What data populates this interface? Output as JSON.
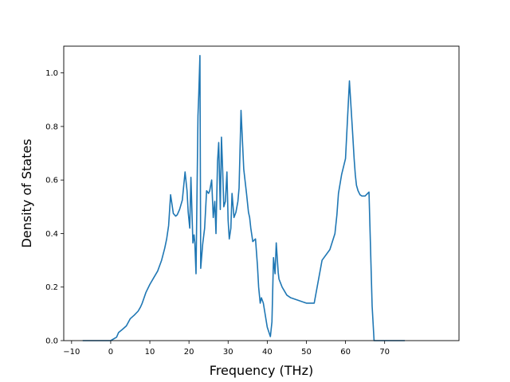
{
  "chart_data": {
    "type": "line",
    "title": "",
    "xlabel": "Frequency (THz)",
    "ylabel": "Density of States",
    "xlim": [
      -12,
      89
    ],
    "ylim": [
      0.0,
      1.1
    ],
    "xticks": [
      -10,
      0,
      10,
      20,
      30,
      40,
      50,
      60,
      70
    ],
    "yticks": [
      0.0,
      0.2,
      0.4,
      0.6,
      0.8,
      1.0
    ],
    "xtick_labels": [
      "−10",
      "0",
      "10",
      "20",
      "30",
      "40",
      "50",
      "60",
      "70"
    ],
    "ytick_labels": [
      "0.0",
      "0.2",
      "0.4",
      "0.6",
      "0.8",
      "1.0"
    ],
    "grid": false,
    "series": [
      {
        "name": "",
        "color": "#1f77b4",
        "x": [
          -7,
          -2,
          0,
          1.5,
          2,
          3,
          4,
          5,
          6,
          7,
          7.6,
          8,
          9,
          10,
          11,
          12,
          13,
          13.8,
          14.3,
          14.8,
          15.3,
          16,
          16.6,
          17,
          17.6,
          18.3,
          19,
          19.5,
          19.8,
          20.2,
          20.5,
          21,
          21.3,
          21.5,
          21.8,
          22.3,
          22.5,
          22.8,
          23,
          23.5,
          24,
          24.5,
          25,
          25.3,
          25.8,
          26.2,
          26.6,
          26.9,
          27.3,
          27.6,
          28,
          28.3,
          28.6,
          28.9,
          29.3,
          29.7,
          30,
          30.3,
          30.7,
          31,
          31.5,
          32,
          32.5,
          32.8,
          33.3,
          34,
          34.7,
          35.2,
          35.5,
          35.8,
          36.3,
          37,
          37.5,
          37.8,
          38.2,
          38.5,
          39,
          40,
          40.8,
          41.2,
          41.6,
          42,
          42.3,
          42.8,
          43,
          43.4,
          43.8,
          44.2,
          44.6,
          45,
          46,
          48,
          50,
          52,
          54,
          56,
          57.3,
          57.8,
          58.2,
          59,
          60,
          61,
          61.8,
          62.2,
          62.5,
          62.8,
          63.2,
          63.7,
          64.2,
          65,
          66,
          66.8,
          67.3,
          67.5,
          67.8,
          68,
          68.3,
          70,
          75
        ],
        "y": [
          0.0,
          0.0,
          0.0,
          0.013,
          0.03,
          0.042,
          0.055,
          0.082,
          0.095,
          0.11,
          0.125,
          0.138,
          0.18,
          0.21,
          0.235,
          0.26,
          0.3,
          0.345,
          0.38,
          0.43,
          0.545,
          0.475,
          0.465,
          0.47,
          0.49,
          0.525,
          0.63,
          0.56,
          0.48,
          0.42,
          0.61,
          0.365,
          0.395,
          0.365,
          0.25,
          0.84,
          0.92,
          1.065,
          0.27,
          0.36,
          0.42,
          0.56,
          0.55,
          0.56,
          0.6,
          0.46,
          0.52,
          0.4,
          0.67,
          0.74,
          0.49,
          0.76,
          0.64,
          0.5,
          0.52,
          0.63,
          0.45,
          0.38,
          0.42,
          0.55,
          0.46,
          0.48,
          0.52,
          0.57,
          0.86,
          0.64,
          0.55,
          0.48,
          0.46,
          0.42,
          0.37,
          0.38,
          0.28,
          0.2,
          0.14,
          0.16,
          0.14,
          0.05,
          0.015,
          0.07,
          0.31,
          0.25,
          0.365,
          0.255,
          0.23,
          0.215,
          0.2,
          0.19,
          0.18,
          0.17,
          0.16,
          0.15,
          0.14,
          0.14,
          0.3,
          0.34,
          0.4,
          0.47,
          0.55,
          0.62,
          0.68,
          0.97,
          0.78,
          0.68,
          0.62,
          0.58,
          0.56,
          0.545,
          0.54,
          0.54,
          0.555,
          0.13,
          0.0,
          0.0,
          0.0,
          0.0,
          0.0,
          0.0,
          0.0
        ]
      }
    ]
  }
}
